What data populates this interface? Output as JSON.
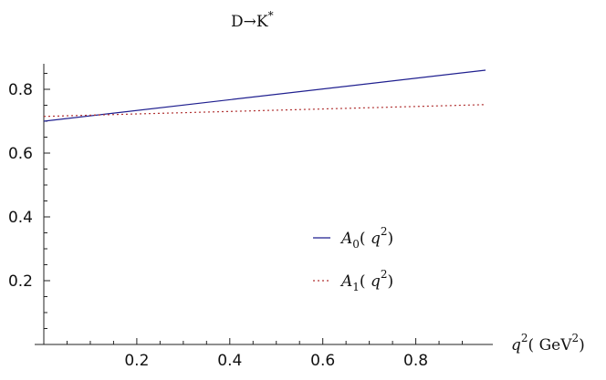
{
  "chart_data": {
    "type": "line",
    "title": "D→K*",
    "title_parts": {
      "main": "D→K",
      "sup": "*"
    },
    "xlabel": "q²( GeV²)",
    "xlabel_parts": {
      "q": "q",
      "q_sup": "2",
      "paren_open": "( ",
      "unit": "GeV",
      "unit_sup": "2",
      "paren_close": ")"
    },
    "ylabel": "",
    "xlim": [
      0,
      0.95
    ],
    "ylim": [
      0,
      0.88
    ],
    "x_ticks": [
      0.2,
      0.4,
      0.6,
      0.8
    ],
    "x_tick_labels": [
      "0.2",
      "0.4",
      "0.6",
      "0.8"
    ],
    "y_ticks": [
      0.2,
      0.4,
      0.6,
      0.8
    ],
    "y_tick_labels": [
      "0.2",
      "0.4",
      "0.6",
      "0.8"
    ],
    "grid": false,
    "legend_position": "right",
    "series": [
      {
        "name": "A0( q2)",
        "name_parts": {
          "base": "A",
          "sub": "0",
          "open": "( ",
          "var": "q",
          "sup": "2",
          "close": ")"
        },
        "style": "solid",
        "color": "#1f1f8f",
        "x": [
          0,
          0.95
        ],
        "y": [
          0.7,
          0.86
        ]
      },
      {
        "name": "A1( q2)",
        "name_parts": {
          "base": "A",
          "sub": "1",
          "open": "( ",
          "var": "q",
          "sup": "2",
          "close": ")"
        },
        "style": "dotted",
        "color": "#b03030",
        "x": [
          0,
          0.95
        ],
        "y": [
          0.715,
          0.752
        ]
      }
    ]
  }
}
